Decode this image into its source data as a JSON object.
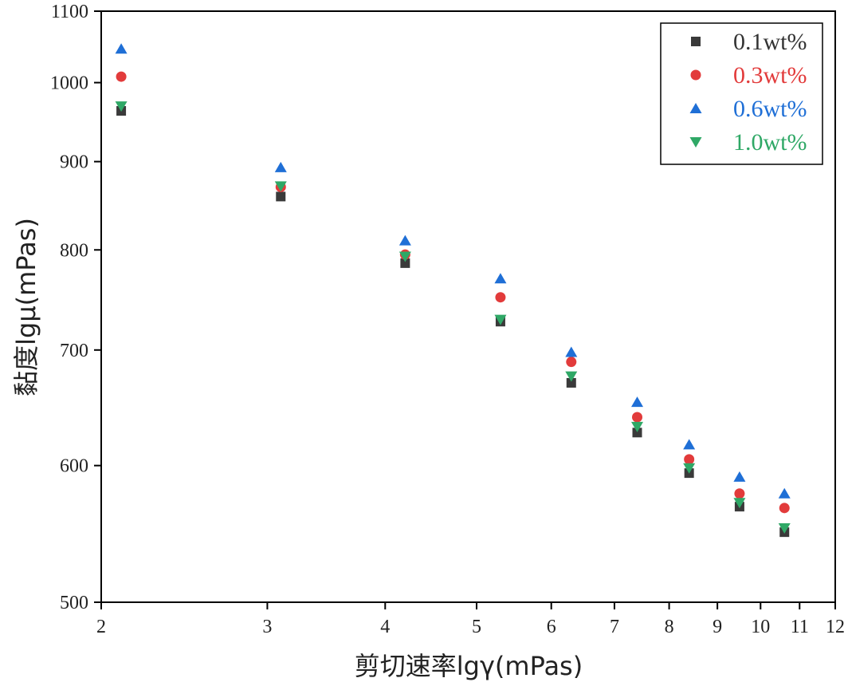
{
  "chart_data": {
    "type": "scatter",
    "title": "",
    "xlabel": "剪切速率lgγ(mPas)",
    "ylabel": "黏度lgμ(mPas)",
    "x_scale": "log",
    "y_scale": "log",
    "xlim": [
      2,
      12
    ],
    "ylim": [
      500,
      1100
    ],
    "x_ticks": [
      2,
      3,
      4,
      5,
      6,
      7,
      8,
      9,
      10,
      11,
      12
    ],
    "y_ticks": [
      500,
      600,
      700,
      800,
      900,
      1000,
      1100
    ],
    "grid": false,
    "legend_position": "top-right",
    "x": [
      2.1,
      3.1,
      4.2,
      5.3,
      6.3,
      7.4,
      8.4,
      9.5,
      10.6
    ],
    "series": [
      {
        "name": "0.1wt%",
        "marker": "square",
        "color": "#3a3a3a",
        "values": [
          963,
          859,
          786,
          727,
          670,
          627,
          594,
          568,
          549
        ]
      },
      {
        "name": "0.3wt%",
        "marker": "circle",
        "color": "#e23b3b",
        "values": [
          1008,
          870,
          795,
          751,
          689,
          640,
          605,
          578,
          567
        ]
      },
      {
        "name": "0.6wt%",
        "marker": "triangle-up",
        "color": "#1f6fd6",
        "values": [
          1046,
          893,
          810,
          770,
          698,
          653,
          617,
          591,
          578
        ]
      },
      {
        "name": "1.0wt%",
        "marker": "triangle-down",
        "color": "#2fa866",
        "values": [
          969,
          871,
          793,
          729,
          676,
          632,
          598,
          571,
          552
        ]
      }
    ]
  }
}
